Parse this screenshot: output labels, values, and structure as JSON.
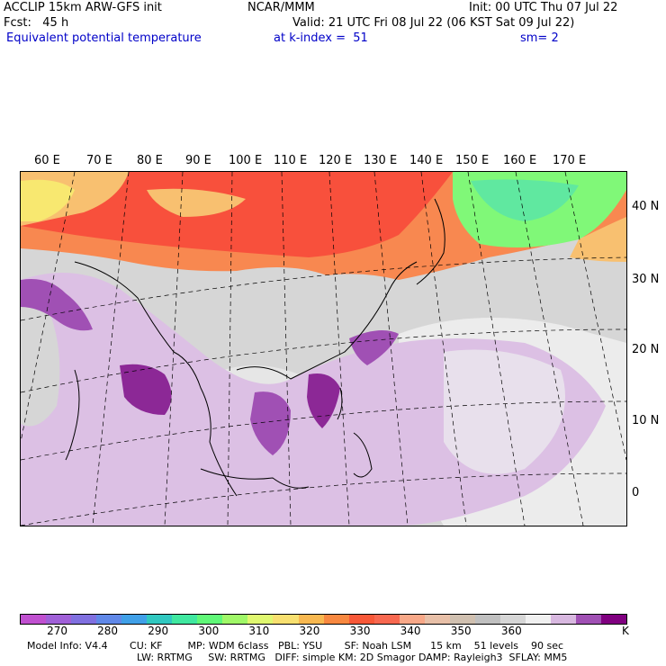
{
  "header": {
    "line1_left": "ACCLIP 15km ARW-GFS init",
    "line1_center": "NCAR/MMM",
    "line1_right": "Init: 00 UTC Thu 07 Jul 22",
    "line2_left": "Fcst:   45 h",
    "line2_right": "Valid: 21 UTC Fri 08 Jul 22 (06 KST Sat 09 Jul 22)",
    "line3_left": "Equivalent potential temperature",
    "line3_center": "at k-index =  51",
    "line3_right": "sm= 2"
  },
  "map": {
    "lon_labels": [
      "60 E",
      "70 E",
      "80 E",
      "90 E",
      "100 E",
      "110 E",
      "120 E",
      "130 E",
      "140 E",
      "150 E",
      "160 E",
      "170 E"
    ],
    "lat_labels": [
      "40 N",
      "30 N",
      "20 N",
      "10 N",
      "0"
    ],
    "colors": {
      "background": "#d6d6d6",
      "warm_dark": "#f8503c",
      "warm_mid": "#f88850",
      "warm_light": "#f8c070",
      "yellow": "#f8e870",
      "green": "#80f878",
      "lilac": "#dcc0e4",
      "purple": "#a050b4",
      "dark_purple": "#8c2896",
      "pale": "#ececec",
      "land_line": "#000000"
    }
  },
  "colorbar": {
    "colors": [
      "#c050d0",
      "#a060d8",
      "#8070e0",
      "#6088e8",
      "#40a0e8",
      "#30c8c0",
      "#40e8a0",
      "#60f878",
      "#a0f868",
      "#e0f870",
      "#f8e070",
      "#f8b850",
      "#f88840",
      "#f85838",
      "#f86850",
      "#f8a888",
      "#e8c0a8",
      "#d0c0b0",
      "#c0c0c0",
      "#d6d6d6",
      "#f0f0f0",
      "#d8b8e0",
      "#a050b4",
      "#800080"
    ],
    "labels": [
      "270",
      "280",
      "290",
      "300",
      "310",
      "320",
      "330",
      "340",
      "350",
      "360"
    ],
    "unit": "K"
  },
  "footer": {
    "line1": "Model Info: V4.4       CU: KF        MP: WDM 6class   PBL: YSU       SF: Noah LSM      15 km    51 levels    90 sec",
    "line2": "LW: RRTMG     SW: RRTMG   DIFF: simple KM: 2D Smagor DAMP: Rayleigh3  SFLAY: MM5"
  }
}
